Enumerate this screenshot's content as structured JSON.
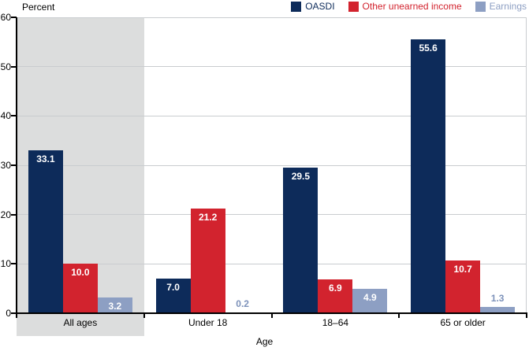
{
  "chart_data": {
    "type": "bar",
    "title": "",
    "ylabel": "Percent",
    "xlabel": "Age",
    "categories": [
      "All ages",
      "Under 18",
      "18–64",
      "65 or older"
    ],
    "series": [
      {
        "name": "OASDI",
        "color": "#0d2b5a",
        "values": [
          33.1,
          7.0,
          29.5,
          55.6
        ]
      },
      {
        "name": "Other unearned income",
        "color": "#d2232e",
        "values": [
          10.0,
          21.2,
          6.9,
          10.7
        ]
      },
      {
        "name": "Earnings",
        "color": "#8d9fc3",
        "values": [
          3.2,
          0.2,
          4.9,
          1.3
        ]
      }
    ],
    "ylim": [
      0,
      60
    ],
    "ytick_step": 10,
    "ytick_labels": [
      "0",
      "10",
      "20",
      "30",
      "40",
      "50",
      "60"
    ],
    "grid": true,
    "legend_position": "top-right",
    "value_labels": true,
    "value_label_decimals": 1,
    "inside_value_label_color": "#ffffff",
    "outside_value_label_color": "#7d92ba",
    "highlight": {
      "category": "All ages",
      "color": "#dcdddd"
    }
  }
}
